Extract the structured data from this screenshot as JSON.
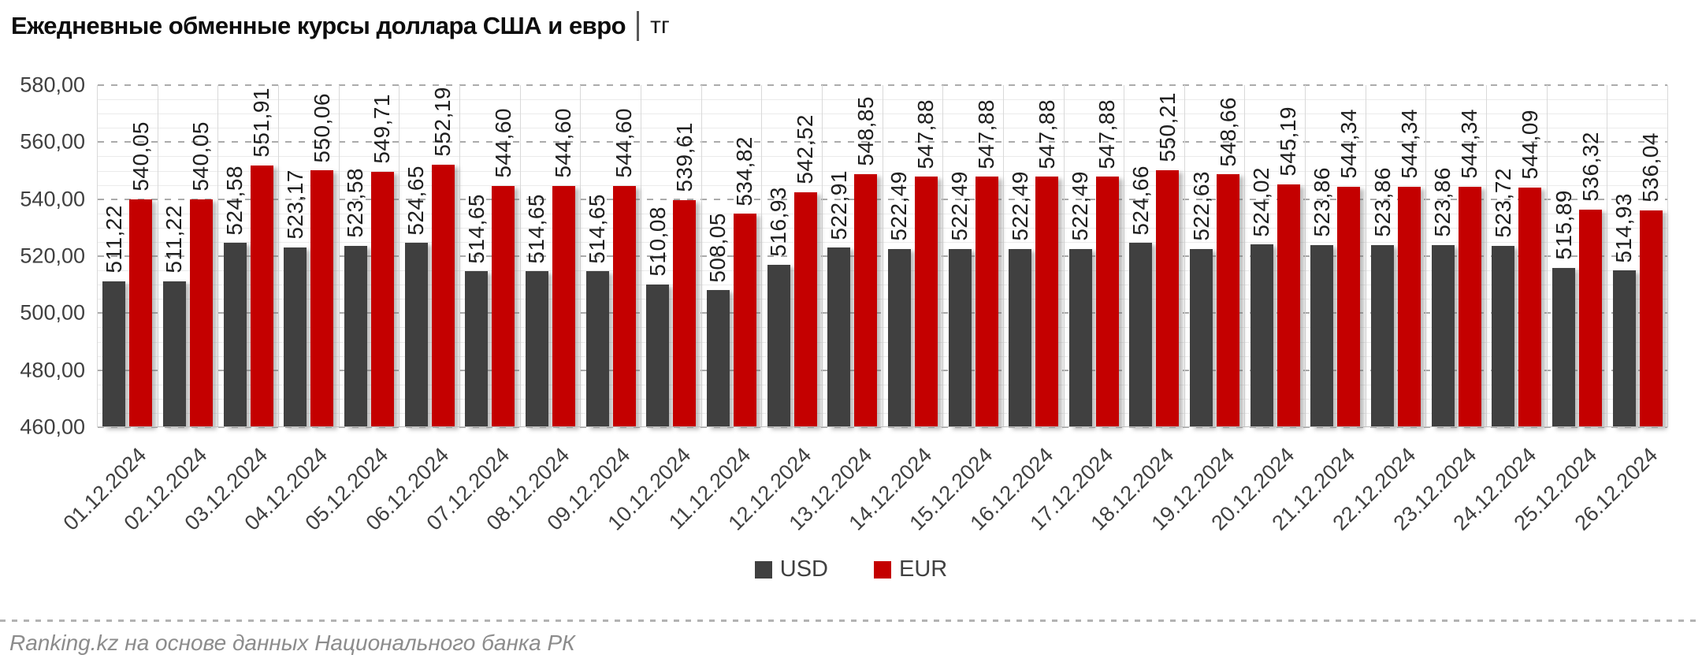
{
  "title": {
    "main": "Ежедневные обменные курсы доллара США и евро",
    "unit": "тг"
  },
  "footer": {
    "source": "Ranking.kz на основе данных Национального банка РК"
  },
  "colors": {
    "usd": "#404040",
    "eur": "#c40000"
  },
  "chart_data": {
    "type": "bar",
    "title": "Ежедневные обменные курсы доллара США и евро | тг",
    "categories": [
      "01.12.2024",
      "02.12.2024",
      "03.12.2024",
      "04.12.2024",
      "05.12.2024",
      "06.12.2024",
      "07.12.2024",
      "08.12.2024",
      "09.12.2024",
      "10.12.2024",
      "11.12.2024",
      "12.12.2024",
      "13.12.2024",
      "14.12.2024",
      "15.12.2024",
      "16.12.2024",
      "17.12.2024",
      "18.12.2024",
      "19.12.2024",
      "20.12.2024",
      "21.12.2024",
      "22.12.2024",
      "23.12.2024",
      "24.12.2024",
      "25.12.2024",
      "26.12.2024"
    ],
    "series": [
      {
        "name": "USD",
        "color": "#404040",
        "values": [
          511.22,
          511.22,
          524.58,
          523.17,
          523.58,
          524.65,
          514.65,
          514.65,
          514.65,
          510.08,
          508.05,
          516.93,
          522.91,
          522.49,
          522.49,
          522.49,
          522.49,
          524.66,
          522.63,
          524.02,
          523.86,
          523.86,
          523.86,
          523.72,
          515.89,
          514.93
        ]
      },
      {
        "name": "EUR",
        "color": "#c40000",
        "values": [
          540.05,
          540.05,
          551.91,
          550.06,
          549.71,
          552.19,
          544.6,
          544.6,
          544.6,
          539.61,
          534.82,
          542.52,
          548.85,
          547.88,
          547.88,
          547.88,
          547.88,
          550.21,
          548.66,
          545.19,
          544.34,
          544.34,
          544.34,
          544.09,
          536.32,
          536.04
        ]
      }
    ],
    "ylim": [
      460,
      580
    ],
    "ytick_step": 20,
    "minor_step": 5,
    "ytick_labels": [
      "460,00",
      "480,00",
      "500,00",
      "520,00",
      "540,00",
      "560,00",
      "580,00"
    ],
    "xlabel": "",
    "ylabel": "",
    "grid": true,
    "legend_position": "bottom",
    "value_labels": "rotated-90-above-bars",
    "decimal_separator": ","
  }
}
